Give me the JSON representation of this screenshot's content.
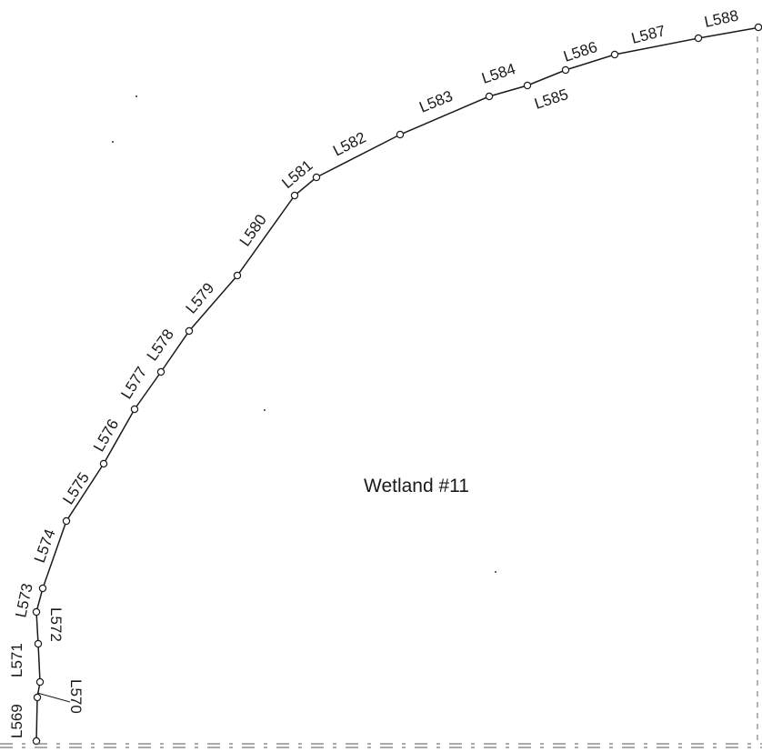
{
  "area_label": "Wetland #11",
  "line_labels": {
    "L569": "L569",
    "L570": "L570",
    "L571": "L571",
    "L572": "L572",
    "L573": "L573",
    "L574": "L574",
    "L575": "L575",
    "L576": "L576",
    "L577": "L577",
    "L578": "L578",
    "L579": "L579",
    "L580": "L580",
    "L581": "L581",
    "L582": "L582",
    "L583": "L583",
    "L584": "L584",
    "L585": "L585",
    "L586": "L586",
    "L587": "L587",
    "L588": "L588"
  }
}
